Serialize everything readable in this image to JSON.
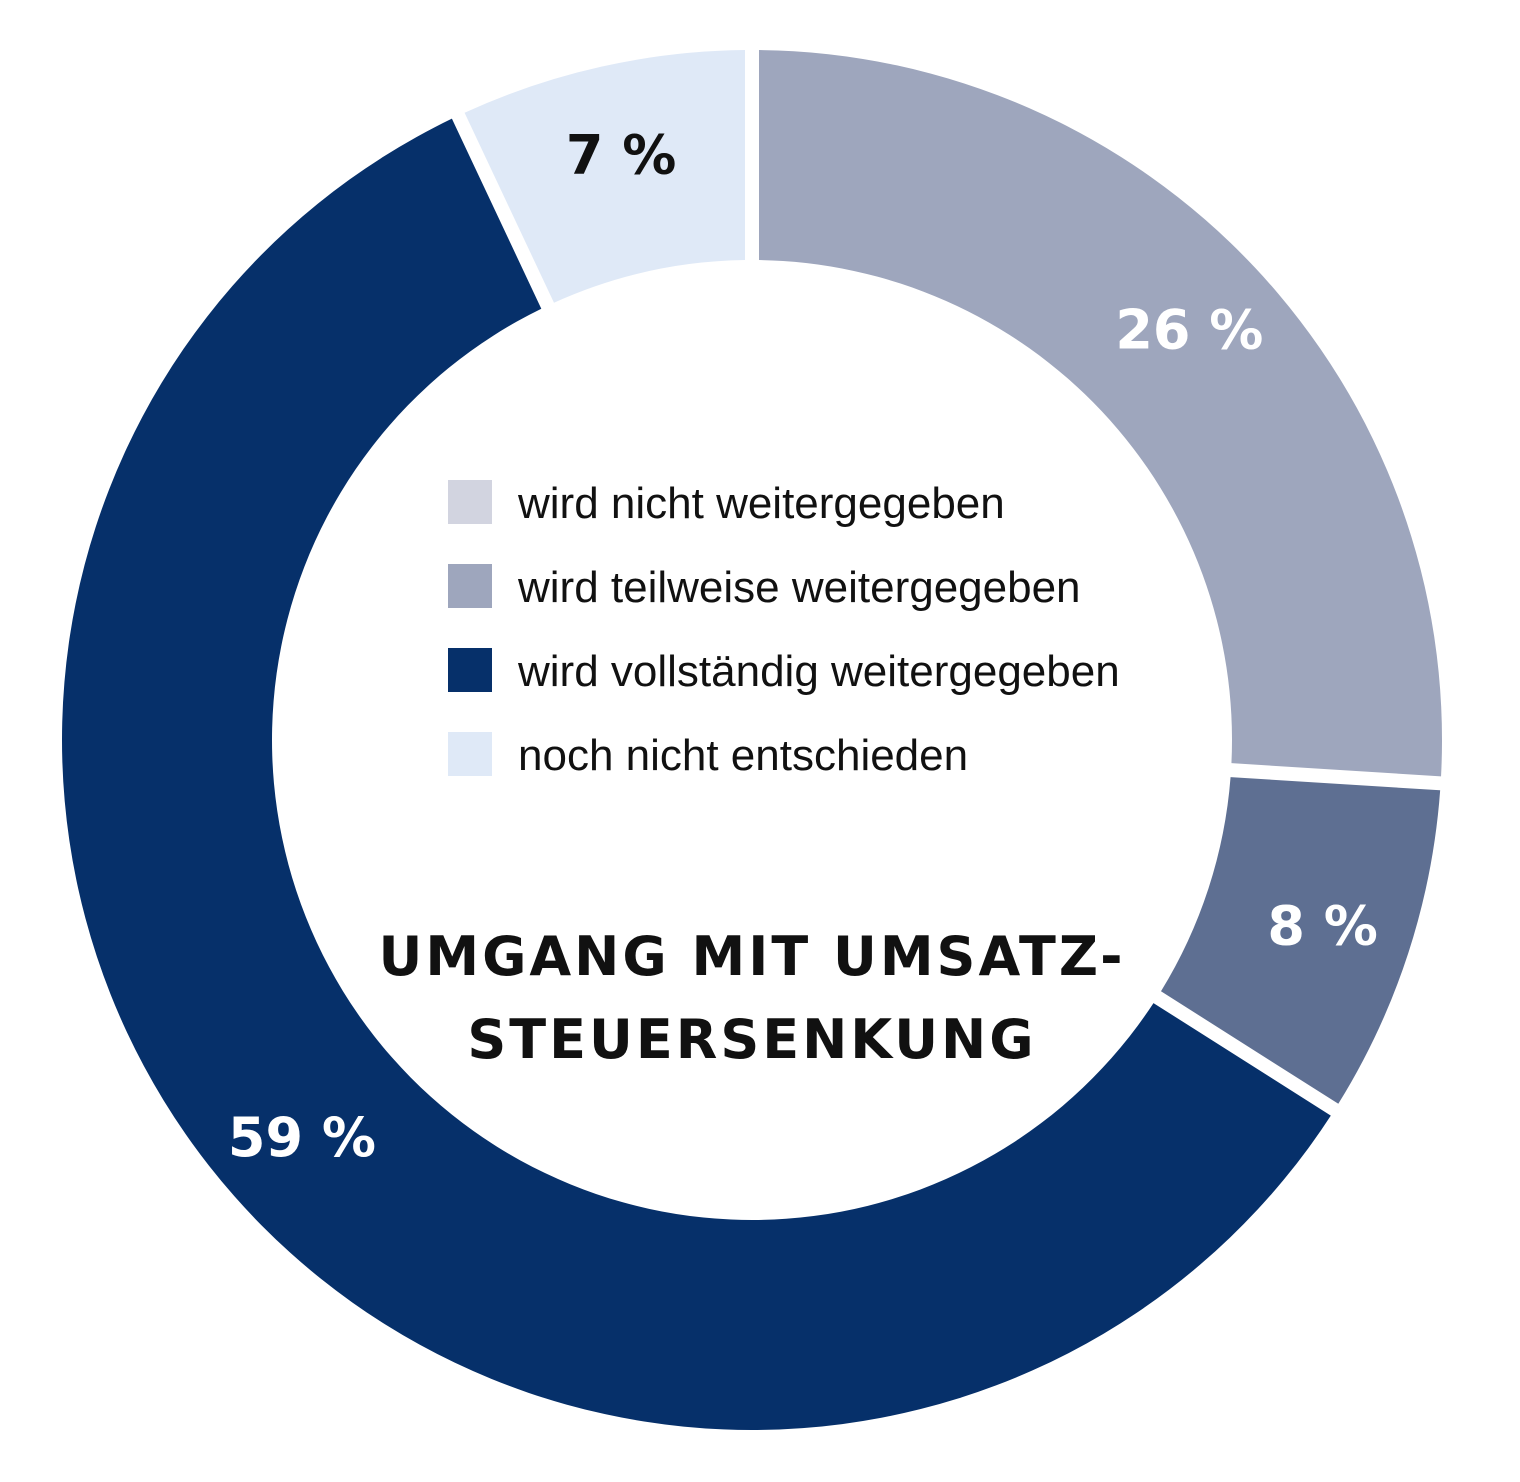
{
  "chart_data": {
    "type": "pie",
    "title_lines": [
      "UMGANG MIT UMSATZ-",
      "STEUERSENKUNG"
    ],
    "slices": [
      {
        "name": "noch nicht entschieden",
        "value": 7,
        "label": "7 %",
        "color": "#dfe9f7",
        "label_color": "#111111"
      },
      {
        "name": "wird nicht weitergegeben",
        "value": 26,
        "label": "26 %",
        "color": "#9ea6bd",
        "label_color": "#ffffff"
      },
      {
        "name": "wird teilweise weitergegeben",
        "value": 8,
        "label": "8 %",
        "color": "#5e6f92",
        "label_color": "#ffffff"
      },
      {
        "name": "wird vollständig weitergegeben",
        "value": 59,
        "label": "59 %",
        "color": "#06306a",
        "label_color": "#ffffff"
      }
    ],
    "legend": [
      {
        "label": "wird nicht weitergegeben",
        "color": "#d2d4e0"
      },
      {
        "label": "wird teilweise weitergegeben",
        "color": "#9ea6bd"
      },
      {
        "label": "wird vollständig weitergegeben",
        "color": "#06306a"
      },
      {
        "label": "noch nicht entschieden",
        "color": "#dfe9f7"
      }
    ],
    "legend_placement": "center"
  }
}
